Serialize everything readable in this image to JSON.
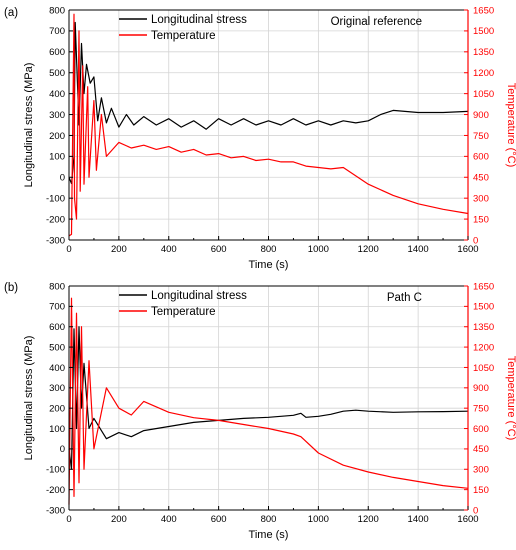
{
  "chart_data": [
    {
      "type": "line",
      "panel_label": "(a)",
      "annotation": "Original reference",
      "xlabel": "Time (s)",
      "ylabel_left": "Longitudinal stress (MPa)",
      "ylabel_right": "Temperature (°C)",
      "xlim": [
        0,
        1600
      ],
      "ylim_left": [
        -300,
        800
      ],
      "ylim_right": [
        0,
        1650
      ],
      "x_ticks": [
        "0",
        "200",
        "400",
        "600",
        "800",
        "1000",
        "1200",
        "1400",
        "1600"
      ],
      "y_left_ticks": [
        "-300",
        "-200",
        "-100",
        "0",
        "100",
        "200",
        "300",
        "400",
        "500",
        "600",
        "700",
        "800"
      ],
      "y_right_ticks": [
        "0",
        "150",
        "300",
        "450",
        "600",
        "750",
        "900",
        "1050",
        "1200",
        "1350",
        "1500",
        "1650"
      ],
      "grid": true,
      "legend_position": "top-left",
      "colors": {
        "stress": "#000000",
        "temperature": "#ff0000"
      },
      "series": [
        {
          "name": "Longitudinal stress",
          "axis": "left",
          "x": [
            0,
            10,
            20,
            25,
            40,
            50,
            60,
            70,
            85,
            100,
            115,
            130,
            150,
            170,
            200,
            230,
            260,
            300,
            350,
            400,
            450,
            500,
            550,
            600,
            650,
            700,
            750,
            800,
            850,
            900,
            950,
            1000,
            1050,
            1100,
            1150,
            1200,
            1250,
            1300,
            1400,
            1500,
            1600
          ],
          "values": [
            0,
            -30,
            100,
            740,
            250,
            640,
            400,
            540,
            450,
            480,
            270,
            380,
            260,
            330,
            240,
            300,
            250,
            290,
            250,
            280,
            240,
            270,
            230,
            280,
            250,
            280,
            250,
            270,
            250,
            280,
            250,
            270,
            250,
            270,
            260,
            270,
            300,
            320,
            310,
            310,
            315
          ]
        },
        {
          "name": "Temperature",
          "axis": "right",
          "x": [
            0,
            10,
            20,
            22,
            30,
            40,
            45,
            55,
            60,
            75,
            80,
            100,
            110,
            130,
            150,
            200,
            250,
            300,
            350,
            400,
            450,
            500,
            550,
            600,
            650,
            700,
            750,
            800,
            850,
            900,
            950,
            1000,
            1050,
            1100,
            1200,
            1300,
            1400,
            1500,
            1600
          ],
          "values": [
            30,
            40,
            1620,
            300,
            150,
            1500,
            350,
            1250,
            400,
            1100,
            450,
            1000,
            500,
            900,
            600,
            700,
            660,
            680,
            650,
            670,
            630,
            650,
            610,
            620,
            590,
            600,
            570,
            580,
            560,
            560,
            530,
            520,
            510,
            520,
            400,
            320,
            260,
            220,
            190
          ]
        }
      ]
    },
    {
      "type": "line",
      "panel_label": "(b)",
      "annotation": "Path C",
      "xlabel": "Time (s)",
      "ylabel_left": "Longitudinal stress (MPa)",
      "ylabel_right": "Temperature (°C)",
      "xlim": [
        0,
        1600
      ],
      "ylim_left": [
        -300,
        800
      ],
      "ylim_right": [
        0,
        1650
      ],
      "x_ticks": [
        "0",
        "200",
        "400",
        "600",
        "800",
        "1000",
        "1200",
        "1400",
        "1600"
      ],
      "y_left_ticks": [
        "-300",
        "-200",
        "-100",
        "0",
        "100",
        "200",
        "300",
        "400",
        "500",
        "600",
        "700",
        "800"
      ],
      "y_right_ticks": [
        "0",
        "150",
        "300",
        "450",
        "600",
        "750",
        "900",
        "1050",
        "1200",
        "1350",
        "1500",
        "1650"
      ],
      "grid": true,
      "legend_position": "top-left",
      "colors": {
        "stress": "#000000",
        "temperature": "#ff0000"
      },
      "series": [
        {
          "name": "Longitudinal stress",
          "axis": "left",
          "x": [
            0,
            10,
            20,
            30,
            40,
            50,
            60,
            80,
            100,
            150,
            200,
            250,
            300,
            400,
            500,
            600,
            700,
            800,
            900,
            930,
            950,
            1000,
            1050,
            1100,
            1150,
            1200,
            1300,
            1400,
            1500,
            1600
          ],
          "values": [
            0,
            -100,
            590,
            100,
            600,
            200,
            420,
            100,
            150,
            50,
            80,
            60,
            90,
            110,
            130,
            140,
            150,
            155,
            165,
            175,
            155,
            160,
            170,
            185,
            190,
            185,
            180,
            182,
            183,
            185
          ]
        },
        {
          "name": "Temperature",
          "axis": "right",
          "x": [
            0,
            10,
            20,
            30,
            40,
            50,
            60,
            80,
            100,
            150,
            200,
            250,
            300,
            400,
            500,
            600,
            700,
            800,
            900,
            930,
            1000,
            1100,
            1200,
            1300,
            1400,
            1500,
            1600
          ],
          "values": [
            40,
            1560,
            100,
            1450,
            200,
            1350,
            300,
            1100,
            450,
            900,
            750,
            700,
            800,
            720,
            680,
            660,
            630,
            600,
            560,
            540,
            420,
            330,
            280,
            240,
            210,
            180,
            160
          ]
        }
      ]
    }
  ]
}
